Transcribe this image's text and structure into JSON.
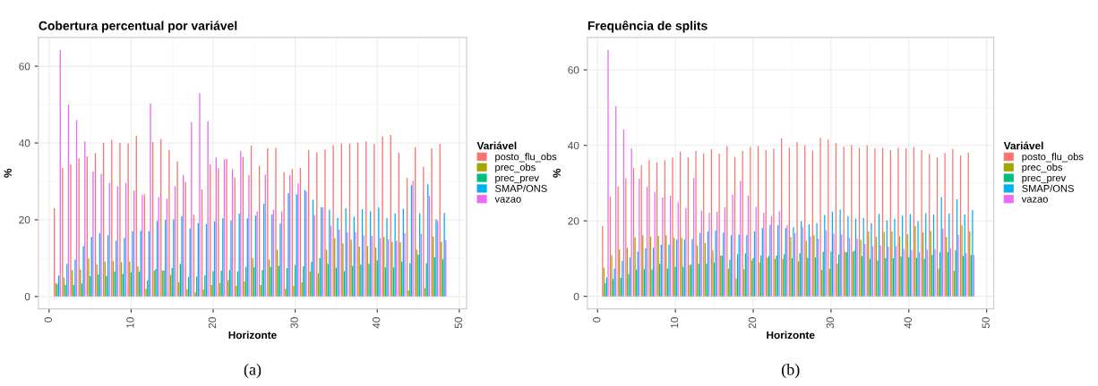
{
  "chart_data": [
    {
      "type": "bar",
      "title": "Cobertura percentual por variável",
      "xlabel": "Horizonte",
      "ylabel": "%",
      "legend_title": "Variável",
      "annotations": [
        "(a)"
      ],
      "grid": true,
      "legend": "right",
      "x": [
        1,
        2,
        3,
        4,
        5,
        6,
        7,
        8,
        9,
        10,
        11,
        12,
        13,
        14,
        15,
        16,
        17,
        18,
        19,
        20,
        21,
        22,
        23,
        24,
        25,
        26,
        27,
        28,
        29,
        30,
        31,
        32,
        33,
        34,
        35,
        36,
        37,
        38,
        39,
        40,
        41,
        42,
        43,
        44,
        45,
        46,
        47,
        48
      ],
      "xlim": [
        -1.3,
        50.9
      ],
      "xticks": [
        0,
        10,
        20,
        30,
        40,
        50
      ],
      "ylim": [
        -3.2,
        67.5
      ],
      "yticks": [
        0,
        20,
        40,
        60
      ],
      "series": [
        {
          "name": "posto_flu_obs",
          "color": "#f8766d",
          "values": [
            23,
            33.5,
            34.5,
            36,
            36.5,
            37.4,
            40,
            40.8,
            40,
            39.9,
            41.9,
            26.6,
            40.3,
            41,
            38.2,
            35.2,
            29.9,
            21.3,
            27.9,
            34.5,
            33.5,
            35.8,
            31,
            36.4,
            39.3,
            34.1,
            38.6,
            38.7,
            32.4,
            33.2,
            33.5,
            38.2,
            37.6,
            38.3,
            39.4,
            39.9,
            39.8,
            40.1,
            40.4,
            39.7,
            41.7,
            42.1,
            37.5,
            30.9,
            38.9,
            33.8,
            38.6,
            39.8
          ]
        },
        {
          "name": "prec_obs",
          "color": "#a3a500",
          "values": [
            3.5,
            5,
            6.9,
            7,
            9.9,
            8.4,
            9.1,
            9.2,
            9,
            9.1,
            7.9,
            2,
            6.7,
            6.8,
            5.6,
            3.7,
            1.9,
            1.1,
            1.9,
            3,
            3.5,
            4.3,
            2.8,
            3.9,
            10,
            3,
            9.7,
            12.2,
            2,
            2.8,
            3.7,
            6.5,
            6,
            12.2,
            15.2,
            13.8,
            14.8,
            13,
            13.2,
            12.7,
            15.5,
            14.2,
            14.1,
            1.6,
            12.2,
            2.2,
            15.6,
            14.2
          ]
        },
        {
          "name": "prec_prev",
          "color": "#00bf7d",
          "values": [
            3.3,
            3,
            3,
            3.4,
            5.3,
            5.7,
            5.3,
            6.5,
            5.9,
            6.3,
            6.5,
            4.2,
            7.2,
            6.8,
            7.4,
            8.5,
            5.1,
            5.2,
            5.5,
            6.6,
            6.7,
            6.9,
            6.6,
            7.7,
            7.6,
            6.9,
            7.7,
            8,
            7.4,
            8.2,
            7.9,
            9.1,
            10,
            8.5,
            7.5,
            6.6,
            8,
            8.3,
            8.5,
            9.4,
            7.6,
            7.6,
            9.1,
            8.7,
            10.9,
            8.7,
            10.2,
            9.7
          ]
        },
        {
          "name": "SMAP/ONS",
          "color": "#00b0f6",
          "values": [
            5.5,
            8.5,
            9.6,
            13.1,
            15.5,
            16.5,
            16,
            14.6,
            15.3,
            17,
            17.1,
            17,
            19.7,
            20,
            20.1,
            20.9,
            17.7,
            19.1,
            18.9,
            19.6,
            20.4,
            19.8,
            21.6,
            20.4,
            21.1,
            24.2,
            21.3,
            19,
            26.9,
            26.6,
            27.7,
            25.2,
            23.3,
            22.6,
            20.5,
            23,
            20.8,
            22.8,
            22.2,
            23.2,
            20.4,
            21.7,
            22.9,
            29,
            21.7,
            29.3,
            20.1,
            21.8
          ]
        },
        {
          "name": "vazao",
          "color": "#e76bf3",
          "values": [
            64.3,
            50,
            46,
            40.4,
            32.6,
            31.9,
            29.6,
            28.7,
            29.6,
            27.6,
            26.5,
            50.3,
            25.9,
            25.5,
            28.7,
            31.7,
            45.4,
            53,
            45.7,
            36.2,
            35.7,
            33.2,
            37.9,
            31.6,
            22.2,
            31.8,
            22.6,
            22.2,
            31.6,
            29.5,
            27.4,
            21.2,
            23.2,
            18.5,
            17.4,
            16.8,
            16.7,
            16,
            15.8,
            15.2,
            14.9,
            14.5,
            16.5,
            30.1,
            16.3,
            26.2,
            19.7,
            14.7
          ]
        }
      ]
    },
    {
      "type": "bar",
      "title": "Frequência de splits",
      "xlabel": "Horizonte",
      "ylabel": "%",
      "legend_title": "Variável",
      "annotations": [
        "(b)"
      ],
      "grid": true,
      "legend": "right",
      "x": [
        1,
        2,
        3,
        4,
        5,
        6,
        7,
        8,
        9,
        10,
        11,
        12,
        13,
        14,
        15,
        16,
        17,
        18,
        19,
        20,
        21,
        22,
        23,
        24,
        25,
        26,
        27,
        28,
        29,
        30,
        31,
        32,
        33,
        34,
        35,
        36,
        37,
        38,
        39,
        40,
        41,
        42,
        43,
        44,
        45,
        46,
        47,
        48
      ],
      "xlim": [
        -1.3,
        50.9
      ],
      "xticks": [
        0,
        10,
        20,
        30,
        40,
        50
      ],
      "ylim": [
        -3.3,
        68.6
      ],
      "yticks": [
        0,
        20,
        40,
        60
      ],
      "series": [
        {
          "name": "posto_flu_obs",
          "color": "#f8766d",
          "values": [
            18.6,
            26.5,
            29.1,
            31.3,
            34,
            34.8,
            36.1,
            35.5,
            36.1,
            36.8,
            38.4,
            36.8,
            38.5,
            37.9,
            39,
            37.8,
            39.9,
            37,
            38.5,
            39.6,
            39.9,
            38.8,
            39.1,
            41.9,
            39.4,
            40.9,
            40,
            38.6,
            42,
            41.5,
            40.6,
            39.7,
            40.1,
            39.4,
            40,
            39.2,
            39.4,
            38.8,
            39.4,
            39.2,
            39.5,
            38.7,
            37.7,
            36.8,
            38,
            39.1,
            37.4,
            38.1
          ]
        },
        {
          "name": "prec_obs",
          "color": "#a3a500",
          "values": [
            7.6,
            10.9,
            12.4,
            12.9,
            15.6,
            16.2,
            15.8,
            16,
            16.2,
            15.5,
            15.5,
            8.3,
            13.5,
            14.2,
            12.2,
            10.8,
            7.3,
            4.7,
            7.2,
            9.5,
            9,
            10.2,
            9.9,
            9.9,
            15.7,
            9.2,
            14.7,
            16.2,
            7,
            7.3,
            8.7,
            11.8,
            11.8,
            15,
            17.2,
            15.8,
            17.1,
            17.2,
            15.9,
            16.5,
            18.6,
            16.9,
            17.3,
            7.3,
            15.7,
            6.8,
            18.9,
            17.2
          ]
        },
        {
          "name": "prec_prev",
          "color": "#00bf7d",
          "values": [
            3.5,
            4.6,
            4.9,
            5.9,
            7.1,
            7.2,
            7.1,
            8.6,
            7.4,
            7.8,
            7.8,
            8.4,
            8.6,
            8.6,
            9,
            10.8,
            9.7,
            11.2,
            11.4,
            10.1,
            10.8,
            10.7,
            10.8,
            11.2,
            10.1,
            11.4,
            10.2,
            10.3,
            11.8,
            11.9,
            11.1,
            11.7,
            12.2,
            10.7,
            9.9,
            9.5,
            10.1,
            10.1,
            10.6,
            10.4,
            10.2,
            9.9,
            10.9,
            11.7,
            11.7,
            12.2,
            10.7,
            11
          ]
        },
        {
          "name": "SMAP/ONS",
          "color": "#00b0f6",
          "values": [
            5,
            7.4,
            9.4,
            10.4,
            11.9,
            12.7,
            12.9,
            13.7,
            13.7,
            15,
            15,
            15.2,
            16.8,
            17.2,
            17.4,
            16.9,
            16.2,
            16.4,
            16.2,
            17.2,
            18.1,
            19,
            18.8,
            18.1,
            18.3,
            19.9,
            19.1,
            19.4,
            21.6,
            22.4,
            23,
            21.2,
            20.6,
            20.8,
            19.4,
            21.9,
            20.1,
            20.6,
            21.4,
            21.8,
            19.9,
            22,
            21.7,
            26.3,
            22,
            25.7,
            21.7,
            22.9
          ]
        },
        {
          "name": "vazao",
          "color": "#e76bf3",
          "values": [
            65.3,
            50.4,
            44.2,
            39.2,
            31.2,
            29,
            27.7,
            26.2,
            26.7,
            24.9,
            23.4,
            31.4,
            22.7,
            22.2,
            22.4,
            23.6,
            27,
            30.6,
            26.7,
            23.7,
            22.2,
            21.3,
            22.5,
            18.9,
            16.7,
            18.3,
            15.9,
            15.3,
            17.5,
            16.6,
            16.4,
            15.5,
            15.3,
            13.9,
            13.3,
            13.5,
            13.2,
            13.3,
            12.6,
            12.2,
            11.7,
            12.4,
            12.5,
            18,
            12.7,
            16.3,
            11.4,
            11
          ]
        }
      ]
    }
  ]
}
